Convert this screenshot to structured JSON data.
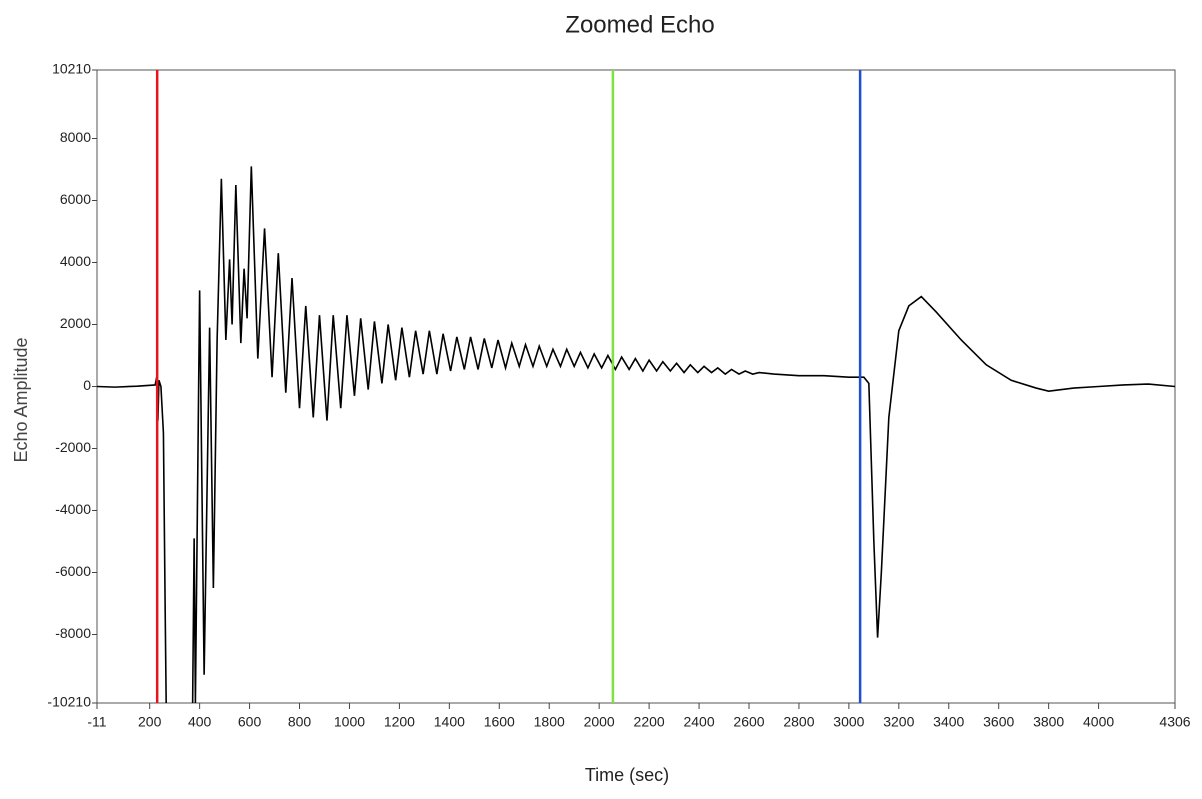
{
  "chart_data": {
    "type": "line",
    "title": "Zoomed Echo",
    "x_label": "Time (sec)",
    "y_label": "Echo Amplitude",
    "x": [
      -11,
      60,
      150,
      222,
      228,
      233,
      237,
      245,
      255,
      262,
      266,
      320,
      372,
      378,
      383,
      400,
      418,
      440,
      455,
      470,
      487,
      505,
      520,
      530,
      545,
      565,
      578,
      590,
      607,
      633,
      660,
      690,
      715,
      745,
      770,
      800,
      825,
      855,
      880,
      910,
      935,
      965,
      990,
      1020,
      1045,
      1075,
      1100,
      1130,
      1155,
      1185,
      1210,
      1240,
      1265,
      1295,
      1320,
      1350,
      1375,
      1405,
      1430,
      1460,
      1485,
      1515,
      1540,
      1570,
      1595,
      1625,
      1650,
      1680,
      1705,
      1735,
      1760,
      1790,
      1815,
      1845,
      1870,
      1900,
      1925,
      1955,
      1980,
      2010,
      2035,
      2065,
      2090,
      2120,
      2145,
      2175,
      2200,
      2230,
      2255,
      2285,
      2310,
      2340,
      2365,
      2395,
      2420,
      2450,
      2475,
      2505,
      2530,
      2560,
      2585,
      2615,
      2640,
      2700,
      2800,
      2900,
      3000,
      3060,
      3080,
      3100,
      3115,
      3130,
      3160,
      3200,
      3240,
      3290,
      3350,
      3450,
      3550,
      3650,
      3750,
      3800,
      3900,
      4000,
      4100,
      4200,
      4306
    ],
    "series": [
      {
        "color": "#000000",
        "values": [
          0,
          -20,
          10,
          50,
          300,
          -1100,
          200,
          0,
          -1500,
          -7200,
          -10210,
          null,
          -10210,
          -4900,
          -10210,
          3100,
          -9300,
          1900,
          -6500,
          1500,
          6700,
          1500,
          4100,
          2000,
          6500,
          1400,
          3800,
          2200,
          7100,
          900,
          5100,
          300,
          4300,
          -200,
          3500,
          -700,
          2600,
          -1000,
          2300,
          -1100,
          2300,
          -700,
          2300,
          -300,
          2200,
          -100,
          2100,
          100,
          2000,
          200,
          1900,
          300,
          1800,
          400,
          1800,
          400,
          1700,
          500,
          1600,
          550,
          1600,
          550,
          1550,
          600,
          1500,
          600,
          1400,
          650,
          1350,
          650,
          1300,
          650,
          1200,
          650,
          1200,
          650,
          1100,
          600,
          1050,
          600,
          1000,
          550,
          950,
          550,
          900,
          500,
          850,
          500,
          800,
          500,
          750,
          450,
          700,
          450,
          650,
          450,
          600,
          400,
          550,
          400,
          500,
          400,
          450,
          400,
          350,
          350,
          300,
          300,
          100,
          -5000,
          -8100,
          -6000,
          -1000,
          1800,
          2600,
          2900,
          2400,
          1500,
          700,
          200,
          -50,
          -150,
          -50,
          0,
          50,
          80,
          0
        ]
      }
    ],
    "cursors": [
      {
        "color": "#e8141a",
        "x": 230
      },
      {
        "color": "#7be33c",
        "x": 2055
      },
      {
        "color": "#1f4fd1",
        "x": 3045
      }
    ],
    "xlim": [
      -11,
      4306
    ],
    "ylim": [
      -10210,
      10210
    ],
    "xticks": [
      -11,
      200,
      400,
      600,
      800,
      1000,
      1200,
      1400,
      1600,
      1800,
      2000,
      2200,
      2400,
      2600,
      2800,
      3000,
      3200,
      3400,
      3600,
      3800,
      4000,
      4306
    ],
    "yticks": [
      10210,
      8000,
      6000,
      4000,
      2000,
      0,
      -2000,
      -4000,
      -6000,
      -8000,
      -10210
    ]
  }
}
